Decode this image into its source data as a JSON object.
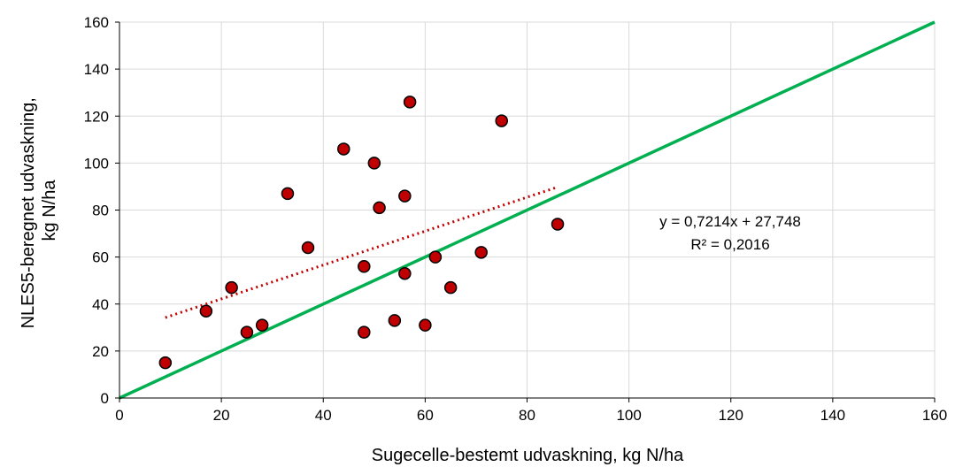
{
  "chart_data": {
    "type": "scatter",
    "xlabel": "Sugecelle-bestemt udvaskning, kg N/ha",
    "ylabel_lines": [
      "NLES5-beregnet udvaskning,",
      "kg N/ha"
    ],
    "xlim": [
      0,
      160
    ],
    "ylim": [
      0,
      160
    ],
    "xticks": [
      0,
      20,
      40,
      60,
      80,
      100,
      120,
      140,
      160
    ],
    "yticks": [
      0,
      20,
      40,
      60,
      80,
      100,
      120,
      140,
      160
    ],
    "grid": true,
    "points": [
      {
        "x": 9,
        "y": 15
      },
      {
        "x": 17,
        "y": 37
      },
      {
        "x": 22,
        "y": 47
      },
      {
        "x": 25,
        "y": 28
      },
      {
        "x": 28,
        "y": 31
      },
      {
        "x": 33,
        "y": 87
      },
      {
        "x": 37,
        "y": 64
      },
      {
        "x": 44,
        "y": 106
      },
      {
        "x": 48,
        "y": 56
      },
      {
        "x": 48,
        "y": 28
      },
      {
        "x": 50,
        "y": 100
      },
      {
        "x": 51,
        "y": 81
      },
      {
        "x": 54,
        "y": 33
      },
      {
        "x": 56,
        "y": 86
      },
      {
        "x": 56,
        "y": 53
      },
      {
        "x": 57,
        "y": 126
      },
      {
        "x": 60,
        "y": 31
      },
      {
        "x": 62,
        "y": 60
      },
      {
        "x": 65,
        "y": 47
      },
      {
        "x": 71,
        "y": 62
      },
      {
        "x": 75,
        "y": 118
      },
      {
        "x": 86,
        "y": 74
      }
    ],
    "trendline": {
      "slope": 0.7214,
      "intercept": 27.748,
      "x_range": [
        9,
        86
      ]
    },
    "reference_line": {
      "slope": 1,
      "intercept": 0
    },
    "equation_text": "y = 0,7214x + 27,748",
    "r2_text": "R² = 0,2016",
    "colors": {
      "point_fill": "#c00000",
      "point_stroke": "#000000",
      "trendline": "#c00000",
      "reference_line": "#00b050",
      "grid": "#d9d9d9",
      "axis": "#000000"
    }
  }
}
